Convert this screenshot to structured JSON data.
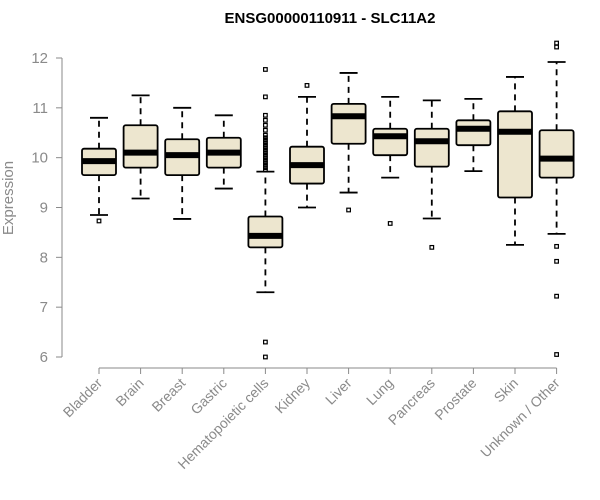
{
  "chart_data": {
    "type": "box",
    "title": "ENSG00000110911 - SLC11A2",
    "ylabel": "Expression",
    "xlabel": "",
    "ylim": [
      6,
      12
    ],
    "yticks": [
      6,
      7,
      8,
      9,
      10,
      11,
      12
    ],
    "colors": {
      "box_fill": "#ede6cf",
      "box_stroke": "#000000",
      "axis": "#8a8a8a"
    },
    "categories": [
      "Bladder",
      "Brain",
      "Breast",
      "Gastric",
      "Hematopoietic cells",
      "Kidney",
      "Liver",
      "Lung",
      "Pancreas",
      "Prostate",
      "Skin",
      "Unknown / Other"
    ],
    "boxes": [
      {
        "name": "Bladder",
        "whisker_low": 8.85,
        "q1": 9.65,
        "median": 9.93,
        "q3": 10.18,
        "whisker_high": 10.8,
        "outliers": [
          8.73
        ]
      },
      {
        "name": "Brain",
        "whisker_low": 9.18,
        "q1": 9.8,
        "median": 10.1,
        "q3": 10.65,
        "whisker_high": 11.25,
        "outliers": []
      },
      {
        "name": "Breast",
        "whisker_low": 8.77,
        "q1": 9.65,
        "median": 10.05,
        "q3": 10.37,
        "whisker_high": 11.0,
        "outliers": []
      },
      {
        "name": "Gastric",
        "whisker_low": 9.38,
        "q1": 9.8,
        "median": 10.1,
        "q3": 10.4,
        "whisker_high": 10.85,
        "outliers": []
      },
      {
        "name": "Hematopoietic cells",
        "whisker_low": 7.3,
        "q1": 8.2,
        "median": 8.43,
        "q3": 8.82,
        "whisker_high": 9.72,
        "outliers": [
          6.0,
          6.3,
          9.75,
          9.8,
          9.85,
          9.9,
          9.95,
          10.0,
          10.05,
          10.1,
          10.15,
          10.2,
          10.25,
          10.3,
          10.35,
          10.4,
          10.45,
          10.55,
          10.65,
          10.75,
          10.85,
          11.22,
          11.77
        ]
      },
      {
        "name": "Kidney",
        "whisker_low": 9.0,
        "q1": 9.48,
        "median": 9.85,
        "q3": 10.22,
        "whisker_high": 11.22,
        "outliers": [
          11.45
        ]
      },
      {
        "name": "Liver",
        "whisker_low": 9.3,
        "q1": 10.28,
        "median": 10.83,
        "q3": 11.08,
        "whisker_high": 11.7,
        "outliers": [
          8.95
        ]
      },
      {
        "name": "Lung",
        "whisker_low": 9.6,
        "q1": 10.05,
        "median": 10.43,
        "q3": 10.58,
        "whisker_high": 11.22,
        "outliers": [
          8.68
        ]
      },
      {
        "name": "Pancreas",
        "whisker_low": 8.78,
        "q1": 9.82,
        "median": 10.33,
        "q3": 10.58,
        "whisker_high": 11.15,
        "outliers": [
          8.2
        ]
      },
      {
        "name": "Prostate",
        "whisker_low": 9.73,
        "q1": 10.25,
        "median": 10.58,
        "q3": 10.75,
        "whisker_high": 11.18,
        "outliers": []
      },
      {
        "name": "Skin",
        "whisker_low": 8.25,
        "q1": 9.2,
        "median": 10.52,
        "q3": 10.93,
        "whisker_high": 11.62,
        "outliers": []
      },
      {
        "name": "Unknown / Other",
        "whisker_low": 8.47,
        "q1": 9.6,
        "median": 9.98,
        "q3": 10.55,
        "whisker_high": 11.92,
        "outliers": [
          6.05,
          7.22,
          7.92,
          8.22,
          12.22,
          12.3
        ]
      }
    ]
  }
}
